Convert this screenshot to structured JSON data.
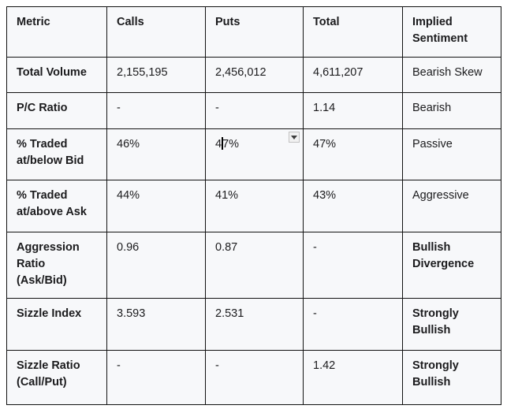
{
  "colors": {
    "border": "#121212",
    "cell_background": "#f7f8fa",
    "page_background": "#ffffff",
    "text": "#1b1b1d"
  },
  "icons": {
    "cell_dropdown": "down-triangle-icon"
  },
  "table": {
    "headers": [
      "Metric",
      "Calls",
      "Puts",
      "Total",
      "Implied Sentiment"
    ],
    "rows": [
      {
        "metric": "Total Volume",
        "calls": "2,155,195",
        "puts": "2,456,012",
        "total": "4,611,207",
        "sentiment": "Bearish Skew"
      },
      {
        "metric": "P/C Ratio",
        "calls": "-",
        "puts": "-",
        "total": "1.14",
        "sentiment": "Bearish"
      },
      {
        "metric": "% Traded at/below Bid",
        "calls": "46%",
        "puts_before_caret": "4",
        "puts_after_caret": "7%",
        "total": "47%",
        "sentiment": "Passive"
      },
      {
        "metric": "% Traded at/above Ask",
        "calls": "44%",
        "puts": "41%",
        "total": "43%",
        "sentiment": "Aggressive"
      },
      {
        "metric": "Aggression Ratio (Ask/Bid)",
        "calls": "0.96",
        "puts": "0.87",
        "total": "-",
        "sentiment": "Bullish Divergence"
      },
      {
        "metric": "Sizzle Index",
        "calls": "3.593",
        "puts": "2.531",
        "total": "-",
        "sentiment": "Strongly Bullish"
      },
      {
        "metric": "Sizzle Ratio (Call/Put)",
        "calls": "-",
        "puts": "-",
        "total": "1.42",
        "sentiment": "Strongly Bullish"
      }
    ],
    "editing": {
      "cell": "puts-pct-traded-below-bid",
      "caret_between": [
        "4",
        "7%"
      ]
    }
  }
}
